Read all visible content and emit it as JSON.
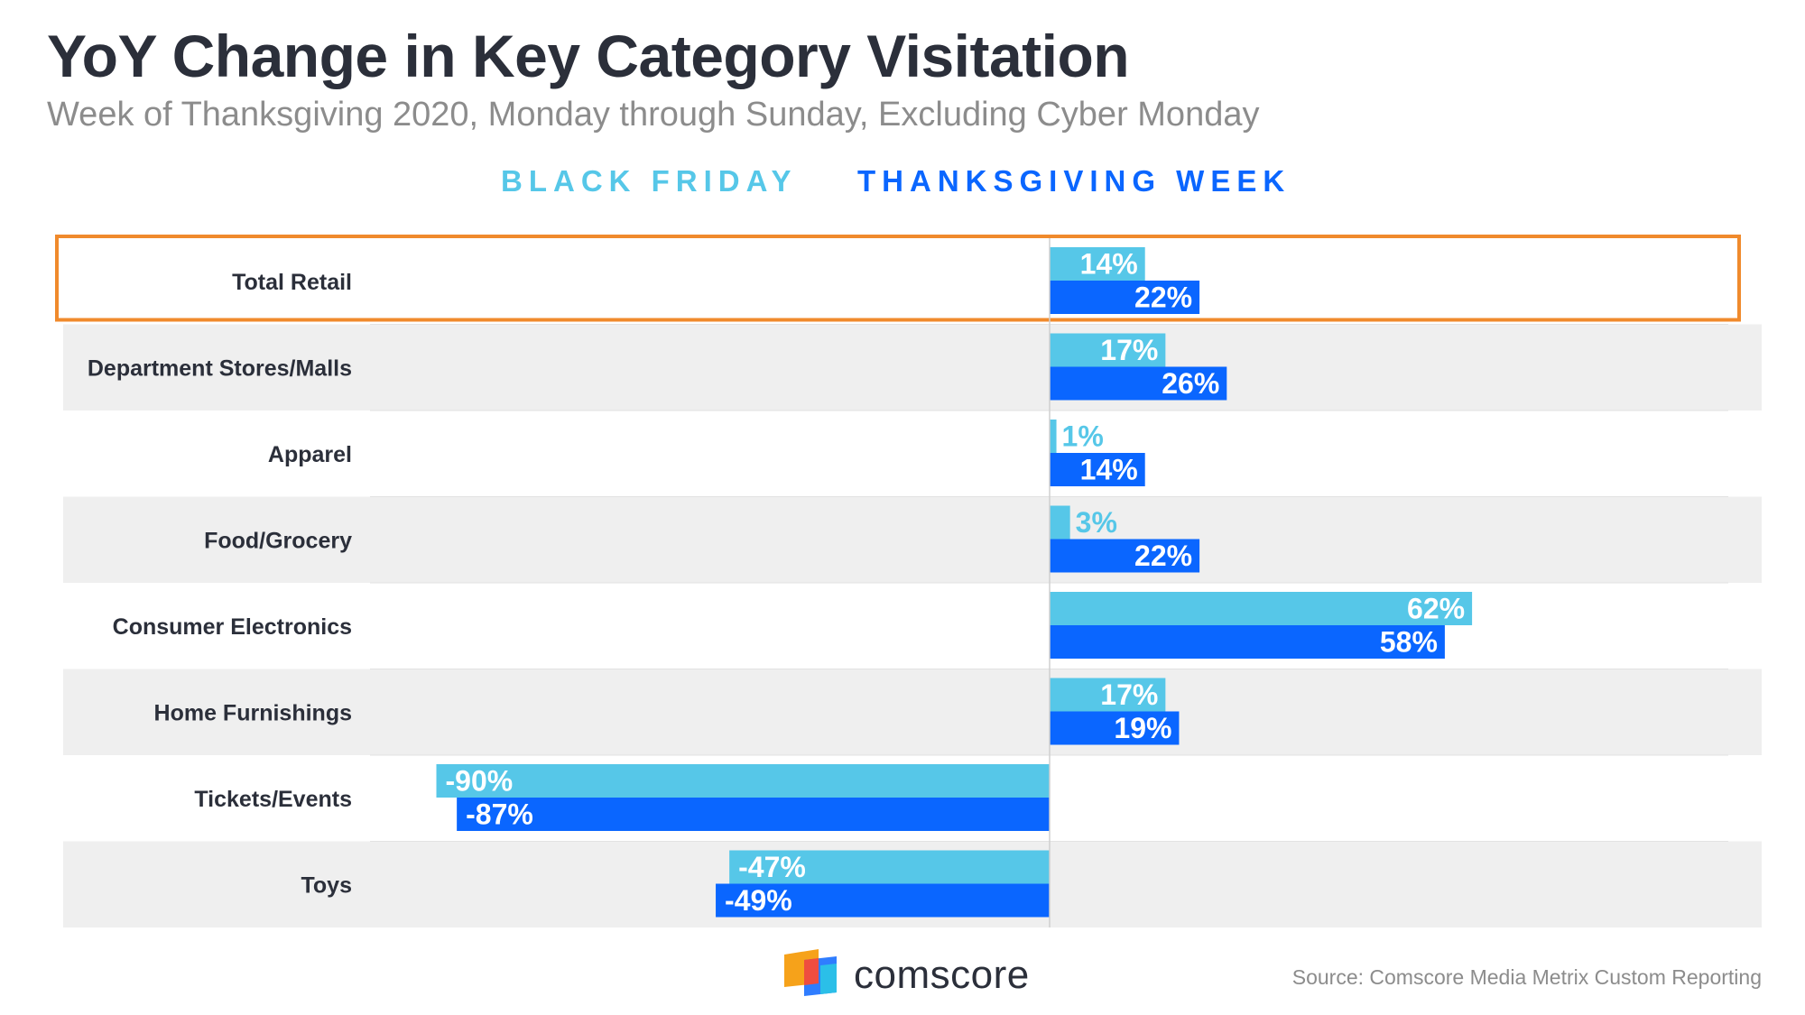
{
  "chart_data": {
    "type": "bar",
    "orientation": "horizontal",
    "title": "YoY Change in Key Category Visitation",
    "subtitle": "Week of Thanksgiving 2020, Monday through Sunday, Excluding Cyber Monday",
    "categories": [
      "Total Retail",
      "Department Stores/Malls",
      "Apparel",
      "Food/Grocery",
      "Consumer Electronics",
      "Home Furnishings",
      "Tickets/Events",
      "Toys"
    ],
    "series": [
      {
        "name": "BLACK FRIDAY",
        "color": "#56c7e8",
        "values": [
          14,
          17,
          1,
          3,
          62,
          17,
          -90,
          -47
        ],
        "labels": [
          "14%",
          "17%",
          "1%",
          "3%",
          "62%",
          "17%",
          "-90%",
          "-47%"
        ]
      },
      {
        "name": "THANKSGIVING WEEK",
        "color": "#0a66ff",
        "values": [
          22,
          26,
          14,
          22,
          58,
          19,
          -87,
          -49
        ],
        "labels": [
          "22%",
          "26%",
          "14%",
          "22%",
          "58%",
          "19%",
          "-87%",
          "-49%"
        ]
      }
    ],
    "xlim": [
      -100,
      100
    ],
    "unit": "%",
    "highlighted_category": "Total Retail",
    "highlight_color": "#f08a2c",
    "row_band_color": "#efefef",
    "legend_position": "top-center",
    "grid": false
  },
  "footer": {
    "brand": "comscore",
    "source": "Source: Comscore Media Metrix Custom Reporting"
  },
  "colors": {
    "title": "#2b2f3a",
    "subtitle": "#8c8c8c",
    "category_label": "#2b2f3a",
    "label_inside": "#ffffff"
  }
}
